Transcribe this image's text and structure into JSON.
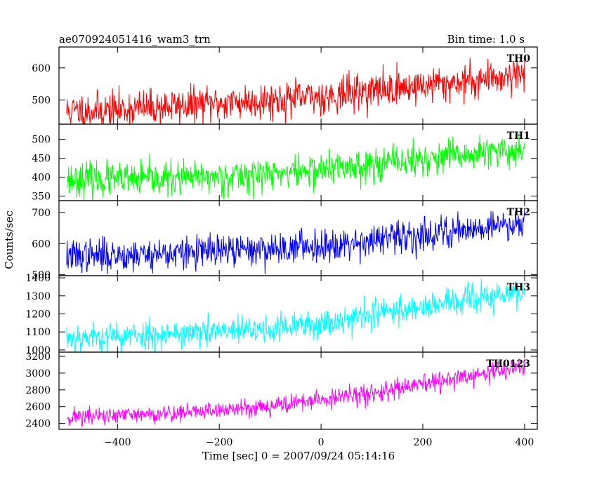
{
  "chart_data": {
    "type": "line",
    "title": "ae070924051416_wam3_trn",
    "subtitle": "Bin time: 1.0 s",
    "xlabel": "Time [sec] 0 = 2007/09/24 05:14:16",
    "ylabel": "Counts/sec",
    "xlim": [
      -515,
      425
    ],
    "xticks": [
      -400,
      -200,
      0,
      200,
      400
    ],
    "xtick_labels": [
      "−400",
      "−200",
      "0",
      "200",
      "400"
    ],
    "x_start": -500,
    "x_end": 400,
    "bin": 1.0,
    "grid": false,
    "series": [
      {
        "name": "TH0",
        "color": "#ff0000",
        "ylim": [
          425,
          665
        ],
        "yticks": [
          500,
          600
        ],
        "trend": [
          [
            -500,
            465
          ],
          [
            -400,
            470
          ],
          [
            -300,
            480
          ],
          [
            -200,
            490
          ],
          [
            -100,
            500
          ],
          [
            0,
            510
          ],
          [
            100,
            530
          ],
          [
            200,
            545
          ],
          [
            300,
            560
          ],
          [
            400,
            585
          ]
        ],
        "noise": 28,
        "seed": 11
      },
      {
        "name": "TH1",
        "color": "#00ff00",
        "ylim": [
          338,
          540
        ],
        "yticks": [
          350,
          400,
          450,
          500
        ],
        "trend": [
          [
            -500,
            395
          ],
          [
            -400,
            393
          ],
          [
            -300,
            395
          ],
          [
            -200,
            400
          ],
          [
            -100,
            410
          ],
          [
            0,
            420
          ],
          [
            100,
            435
          ],
          [
            200,
            445
          ],
          [
            300,
            460
          ],
          [
            400,
            472
          ]
        ],
        "noise": 22,
        "seed": 23
      },
      {
        "name": "TH2",
        "color": "#0000ff",
        "ylim": [
          497,
          738
        ],
        "yticks": [
          500,
          600,
          700
        ],
        "trend": [
          [
            -500,
            560
          ],
          [
            -400,
            563
          ],
          [
            -300,
            568
          ],
          [
            -200,
            575
          ],
          [
            -100,
            583
          ],
          [
            0,
            595
          ],
          [
            100,
            610
          ],
          [
            200,
            628
          ],
          [
            300,
            650
          ],
          [
            400,
            668
          ]
        ],
        "noise": 26,
        "seed": 37
      },
      {
        "name": "TH3",
        "color": "#00ffff",
        "ylim": [
          988,
          1412
        ],
        "yticks": [
          1000,
          1100,
          1200,
          1300,
          1400
        ],
        "trend": [
          [
            -500,
            1070
          ],
          [
            -400,
            1075
          ],
          [
            -300,
            1090
          ],
          [
            -200,
            1100
          ],
          [
            -100,
            1115
          ],
          [
            0,
            1145
          ],
          [
            100,
            1200
          ],
          [
            200,
            1240
          ],
          [
            300,
            1280
          ],
          [
            400,
            1320
          ]
        ],
        "noise": 40,
        "seed": 53
      },
      {
        "name": "TH0123",
        "color": "#ff00ff",
        "ylim": [
          2330,
          3250
        ],
        "yticks": [
          2400,
          2600,
          2800,
          3000,
          3200
        ],
        "trend": [
          [
            -500,
            2480
          ],
          [
            -400,
            2490
          ],
          [
            -300,
            2520
          ],
          [
            -200,
            2560
          ],
          [
            -100,
            2610
          ],
          [
            0,
            2680
          ],
          [
            100,
            2760
          ],
          [
            200,
            2860
          ],
          [
            300,
            2970
          ],
          [
            400,
            3080
          ]
        ],
        "noise": 55,
        "seed": 71
      }
    ]
  }
}
